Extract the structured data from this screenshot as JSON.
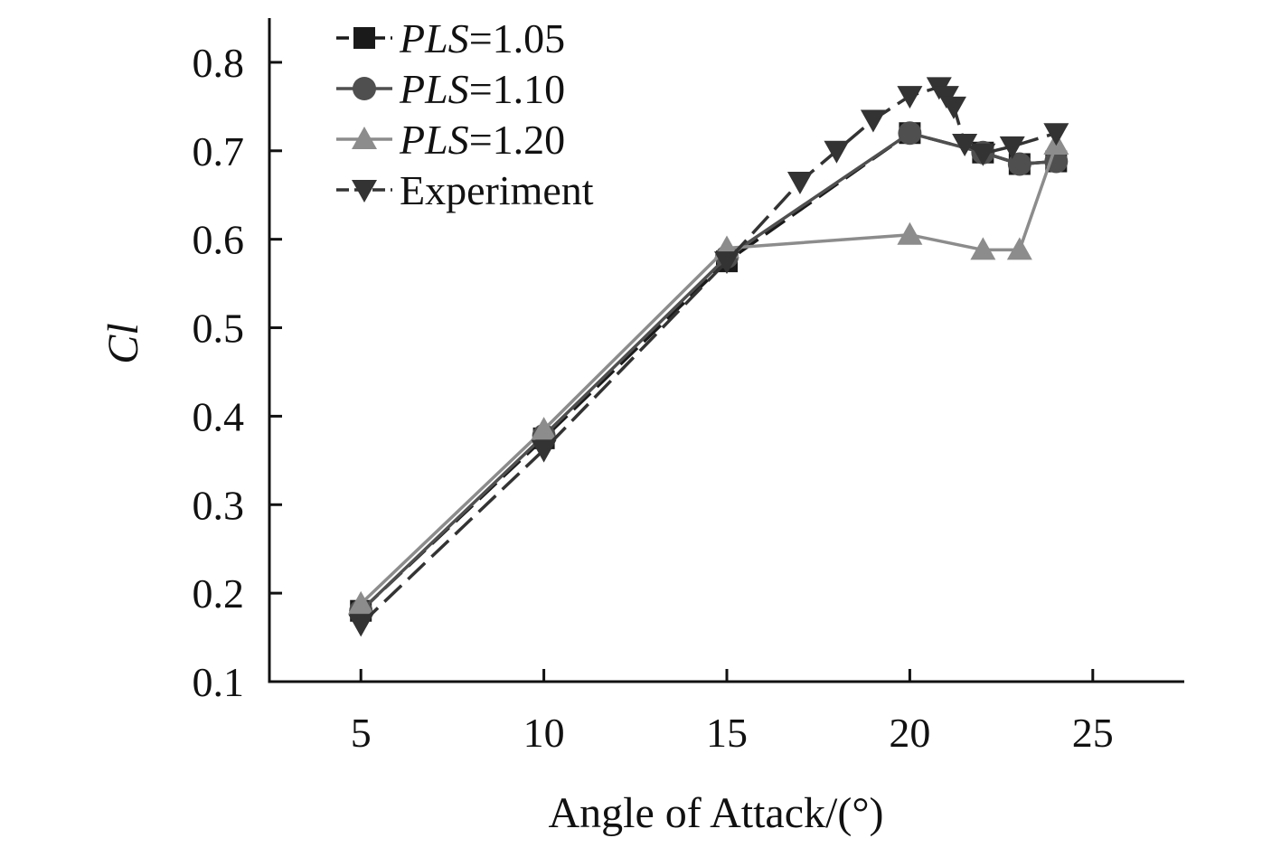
{
  "chart_data": {
    "type": "line",
    "title": "",
    "xlabel": "Angle of Attack/(°)",
    "ylabel": "Cl",
    "xlim": [
      2.5,
      27.5
    ],
    "ylim": [
      0.1,
      0.85
    ],
    "xticks": [
      5,
      10,
      15,
      20,
      25
    ],
    "yticks": [
      0.1,
      0.2,
      0.3,
      0.4,
      0.5,
      0.6,
      0.7,
      0.8
    ],
    "xtick_labels": [
      "5",
      "10",
      "15",
      "20",
      "25"
    ],
    "ytick_labels": [
      "0.1",
      "0.2",
      "0.3",
      "0.4",
      "0.5",
      "0.6",
      "0.7",
      "0.8"
    ],
    "grid": false,
    "legend_position": "top-left",
    "series": [
      {
        "name": "PLS=1.05",
        "name_italic": "PLS",
        "name_rest": "=1.05",
        "marker": "square",
        "color": "#1a1a1a",
        "dash": "dashed",
        "x": [
          5,
          10,
          15,
          20,
          22,
          23,
          24
        ],
        "values": [
          0.18,
          0.375,
          0.575,
          0.72,
          0.698,
          0.685,
          0.688
        ]
      },
      {
        "name": "PLS=1.10",
        "name_italic": "PLS",
        "name_rest": "=1.10",
        "marker": "circle",
        "color": "#4f4f4f",
        "dash": "solid",
        "x": [
          5,
          10,
          15,
          20,
          22,
          23,
          24
        ],
        "values": [
          0.18,
          0.378,
          0.58,
          0.72,
          0.698,
          0.685,
          0.688
        ]
      },
      {
        "name": "PLS=1.20",
        "name_italic": "PLS",
        "name_rest": "=1.20",
        "marker": "triangle-up",
        "color": "#8c8c8c",
        "dash": "solid",
        "x": [
          5,
          10,
          15,
          20,
          22,
          23,
          24
        ],
        "values": [
          0.188,
          0.385,
          0.59,
          0.605,
          0.588,
          0.588,
          0.707
        ]
      },
      {
        "name": "Experiment",
        "name_italic": "",
        "name_rest": "Experiment",
        "marker": "triangle-down",
        "color": "#333333",
        "dash": "dashed",
        "x": [
          5,
          10,
          15,
          17,
          18,
          19,
          20,
          20.8,
          21,
          21.2,
          21.5,
          22,
          22.8,
          24
        ],
        "values": [
          0.165,
          0.362,
          0.575,
          0.665,
          0.7,
          0.735,
          0.762,
          0.772,
          0.762,
          0.75,
          0.708,
          0.697,
          0.705,
          0.72
        ]
      }
    ]
  }
}
